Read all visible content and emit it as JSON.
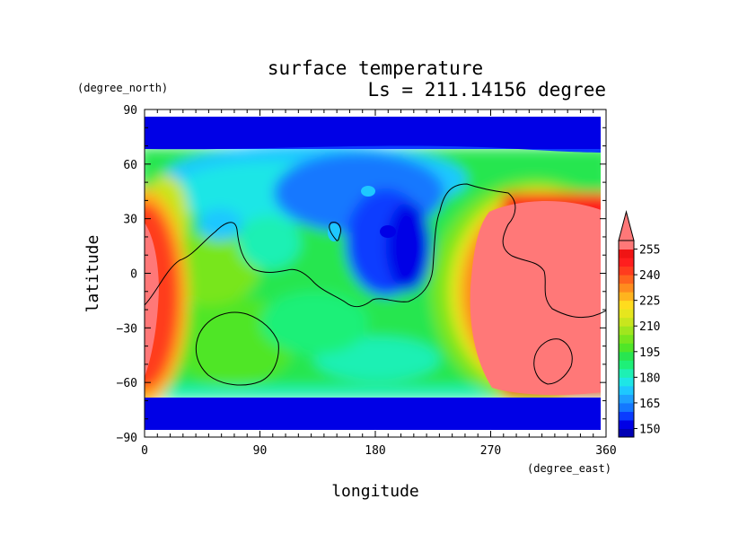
{
  "chart_data": {
    "type": "heatmap",
    "title": "surface temperature",
    "subtitle": "Ls = 211.14156 degree",
    "xlabel": "longitude",
    "ylabel": "latitude",
    "x_units": "(degree_east)",
    "y_units": "(degree_north)",
    "xlim": [
      0,
      360
    ],
    "ylim": [
      -90,
      90
    ],
    "x_ticks": [
      "0",
      "90",
      "180",
      "270",
      "360"
    ],
    "y_ticks": [
      "90",
      "60",
      "30",
      "0",
      "−30",
      "−60",
      "−90"
    ],
    "colorbar": {
      "levels": [
        145,
        150,
        155,
        160,
        165,
        170,
        175,
        180,
        185,
        190,
        195,
        200,
        205,
        210,
        215,
        220,
        225,
        230,
        235,
        240,
        245,
        250,
        255
      ],
      "labels": [
        "150",
        "165",
        "180",
        "195",
        "210",
        "225",
        "240",
        "255"
      ],
      "colors": [
        "#0000b4",
        "#0000e6",
        "#0a3cff",
        "#1478ff",
        "#1ea0ff",
        "#1ec8ff",
        "#1ee6e6",
        "#1ef0b4",
        "#1ef078",
        "#28e650",
        "#50e628",
        "#78e61e",
        "#a0e61e",
        "#c8e61e",
        "#e6e61e",
        "#ffdc1e",
        "#ffb41e",
        "#ff8c1e",
        "#ff641e",
        "#ff3c1e",
        "#ff1e1e",
        "#f01414",
        "#ff7878"
      ],
      "extend": "max"
    },
    "grid": false,
    "contour": "topography outline (black)"
  }
}
